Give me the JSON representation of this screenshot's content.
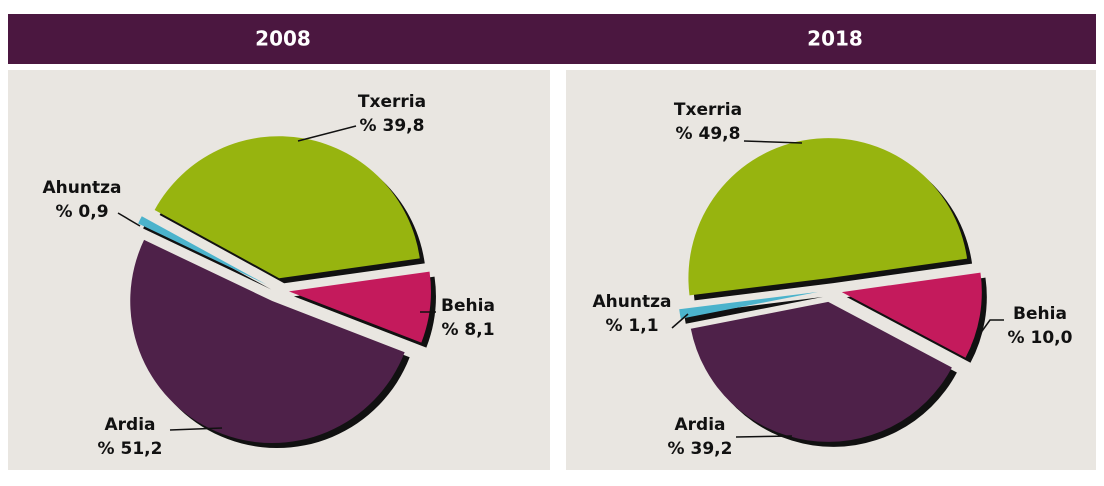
{
  "chart_data": [
    {
      "type": "pie",
      "title": "2008",
      "categories": [
        "Behia",
        "Ardia",
        "Ahuntza",
        "Txerria"
      ],
      "values": [
        8.1,
        51.2,
        0.9,
        39.8
      ],
      "value_labels": [
        "% 8,1",
        "% 51,2",
        "% 0,9",
        "% 39,8"
      ],
      "colors": [
        "#c41a5c",
        "#4e2149",
        "#4bb3cc",
        "#97b40f"
      ]
    },
    {
      "type": "pie",
      "title": "2018",
      "categories": [
        "Behia",
        "Ardia",
        "Ahuntza",
        "Txerria"
      ],
      "values": [
        10.0,
        39.2,
        1.1,
        49.8
      ],
      "value_labels": [
        "% 10,0",
        "% 39,2",
        "% 1,1",
        "% 49,8"
      ],
      "colors": [
        "#c41a5c",
        "#4e2149",
        "#4bb3cc",
        "#97b40f"
      ]
    }
  ]
}
